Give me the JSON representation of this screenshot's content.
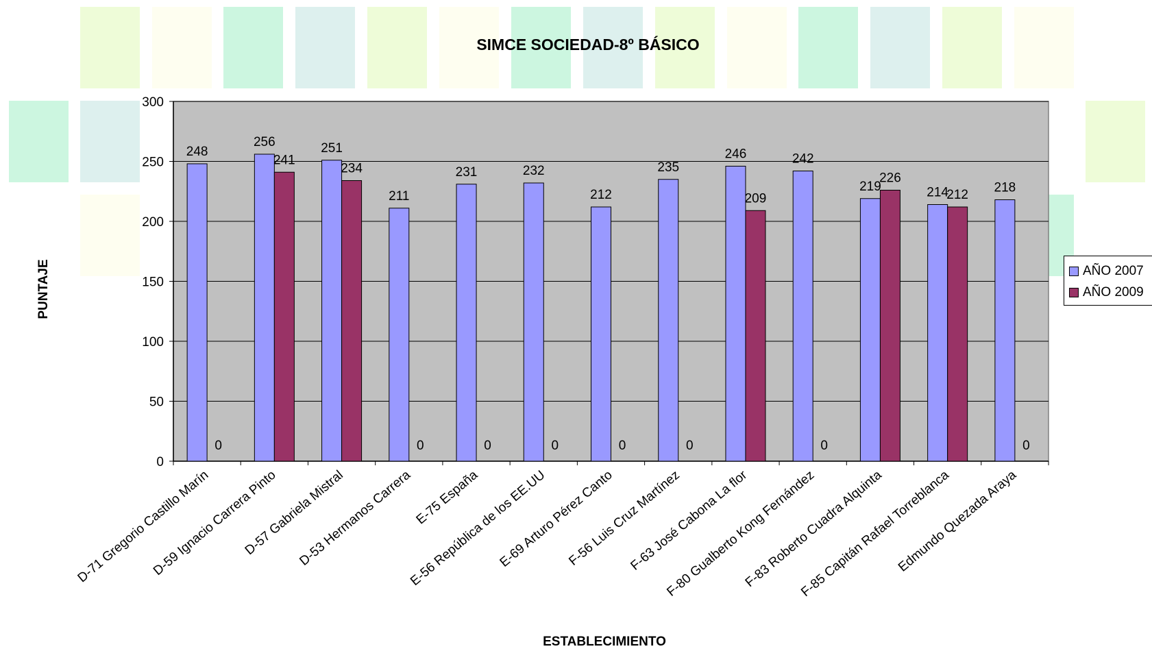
{
  "chart_data": {
    "type": "bar",
    "title": "SIMCE SOCIEDAD-8º BÁSICO",
    "xlabel": "ESTABLECIMIENTO",
    "ylabel": "PUNTAJE",
    "ylim": [
      0,
      300
    ],
    "yticks": [
      0,
      50,
      100,
      150,
      200,
      250,
      300
    ],
    "grid": true,
    "legend_position": "right",
    "categories": [
      "D-71 Gregorio Castillo Marín",
      "D-59 Ignacio Carrera Pinto",
      "D-57 Gabriela Mistral",
      "D-53 Hermanos Carrera",
      "E-75 España",
      "E-56 República de los EE.UU",
      "E-69 Arturo Pérez Canto",
      "F-56 Luis Cruz Martínez",
      "F-63 José Cabona La flor",
      "F-80 Gualberto Kong Fernández",
      "F-83 Roberto Cuadra Alquinta",
      "F-85 Capitán Rafael Torreblanca",
      "Edmundo Quezada Araya"
    ],
    "series": [
      {
        "name": "AÑO 2007",
        "color": "#9999ff",
        "values": [
          248,
          256,
          251,
          211,
          231,
          232,
          212,
          235,
          246,
          242,
          219,
          214,
          218
        ]
      },
      {
        "name": "AÑO 2009",
        "color": "#993366",
        "values": [
          0,
          241,
          234,
          0,
          0,
          0,
          0,
          0,
          209,
          0,
          226,
          212,
          0
        ]
      }
    ],
    "plot_background": "#c0c0c0"
  }
}
